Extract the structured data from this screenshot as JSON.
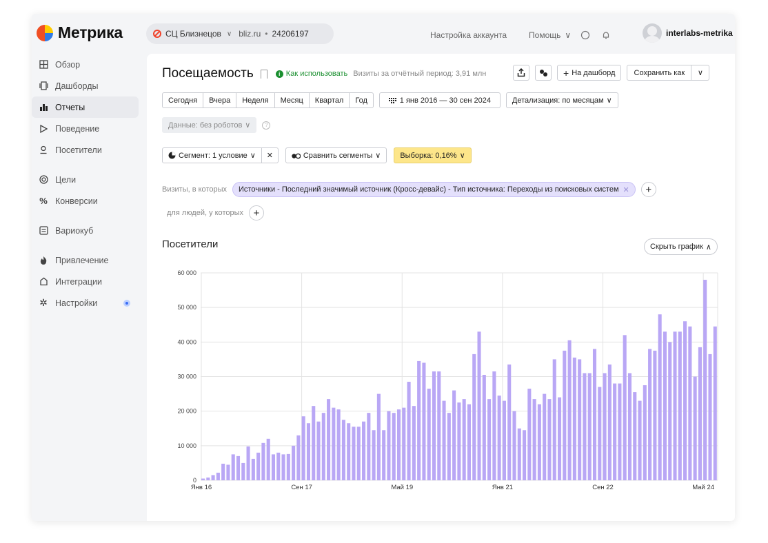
{
  "brand": {
    "name": "Метрика"
  },
  "counter": {
    "name": "СЦ Близнецов",
    "domain": "bliz.ru",
    "separator": "•",
    "id": "24206197"
  },
  "top_nav": {
    "account_settings": "Настройка аккаунта",
    "help": "Помощь",
    "user": "interlabs-metrika"
  },
  "sidebar": {
    "items": [
      {
        "label": "Обзор",
        "icon": "grid-icon"
      },
      {
        "label": "Дашборды",
        "icon": "dashboards-icon"
      },
      {
        "label": "Отчеты",
        "icon": "reports-icon",
        "active": true
      },
      {
        "label": "Поведение",
        "icon": "play-icon"
      },
      {
        "label": "Посетители",
        "icon": "visitor-icon"
      },
      {
        "label": "Цели",
        "icon": "target-icon"
      },
      {
        "label": "Конверсии",
        "icon": "percent-icon"
      },
      {
        "label": "Вариокуб",
        "icon": "variocube-icon"
      },
      {
        "label": "Привлечение",
        "icon": "fire-icon"
      },
      {
        "label": "Интеграции",
        "icon": "puzzle-icon"
      },
      {
        "label": "Настройки",
        "icon": "gear-icon",
        "badge": true
      }
    ]
  },
  "report": {
    "title": "Посещаемость",
    "how_to_use": "Как использовать",
    "visits_note": "Визиты за отчётный период: 3,91 млн",
    "add_to_dashboard": "На дашборд",
    "save_as": "Сохранить как"
  },
  "period": {
    "presets": [
      "Сегодня",
      "Вчера",
      "Неделя",
      "Месяц",
      "Квартал",
      "Год"
    ],
    "range": "1 янв 2016 — 30 сен 2024",
    "detail": "Детализация: по месяцам"
  },
  "data_filter": {
    "label": "Данные: без роботов"
  },
  "segment": {
    "label": "Сегмент: 1 условие",
    "compare": "Сравнить сегменты",
    "sample": "Выборка: 0,16%"
  },
  "filters": {
    "visits_prefix": "Визиты, в которых",
    "condition": "Источники - Последний значимый источник (Кросс-девайс) - Тип источника: Переходы из поисковых систем",
    "people_prefix": "для людей, у которых"
  },
  "chart_section": {
    "title": "Посетители",
    "hide_button": "Скрыть график"
  },
  "colors": {
    "bar": "#b9a7f5",
    "grid": "#e3e3e3",
    "sample_bg": "#fde68a",
    "chip_bg": "#e4e0fc",
    "howto": "#1a8f2f"
  },
  "chart_data": {
    "type": "bar",
    "title": "Посетители",
    "granularity": "month",
    "ylim": [
      0,
      60000
    ],
    "y_ticks": [
      "0",
      "10 000",
      "20 000",
      "30 000",
      "40 000",
      "50 000",
      "60 000"
    ],
    "x_tick_labels": [
      "Янв 16",
      "Сен 17",
      "Май 19",
      "Янв 21",
      "Сен 22",
      "Май 24"
    ],
    "x_tick_indices": [
      0,
      20,
      40,
      60,
      80,
      100
    ],
    "grid": true,
    "legend": "none",
    "values": [
      500,
      800,
      1500,
      2200,
      4800,
      4500,
      7500,
      7000,
      5000,
      9800,
      6200,
      8000,
      10800,
      12000,
      7500,
      8000,
      7500,
      7600,
      10000,
      13000,
      18500,
      16500,
      21500,
      17000,
      19500,
      23500,
      21000,
      20500,
      17500,
      16500,
      15500,
      15500,
      17000,
      19500,
      14500,
      25000,
      14500,
      20000,
      19500,
      20500,
      21000,
      28500,
      21500,
      34500,
      34000,
      26500,
      31500,
      31500,
      23000,
      19500,
      26000,
      22500,
      23500,
      22000,
      36500,
      43000,
      30500,
      23500,
      31500,
      24500,
      23000,
      33500,
      20000,
      15000,
      14500,
      26500,
      23500,
      22000,
      25000,
      23500,
      35000,
      24000,
      37500,
      40500,
      35500,
      35000,
      31000,
      31000,
      38000,
      27000,
      31000,
      33500,
      28000,
      28000,
      42000,
      31000,
      25500,
      23000,
      27500,
      38000,
      37500,
      48000,
      43000,
      40000,
      43000,
      43000,
      46000,
      44500,
      30000,
      38500,
      58000,
      36500,
      44500
    ]
  }
}
